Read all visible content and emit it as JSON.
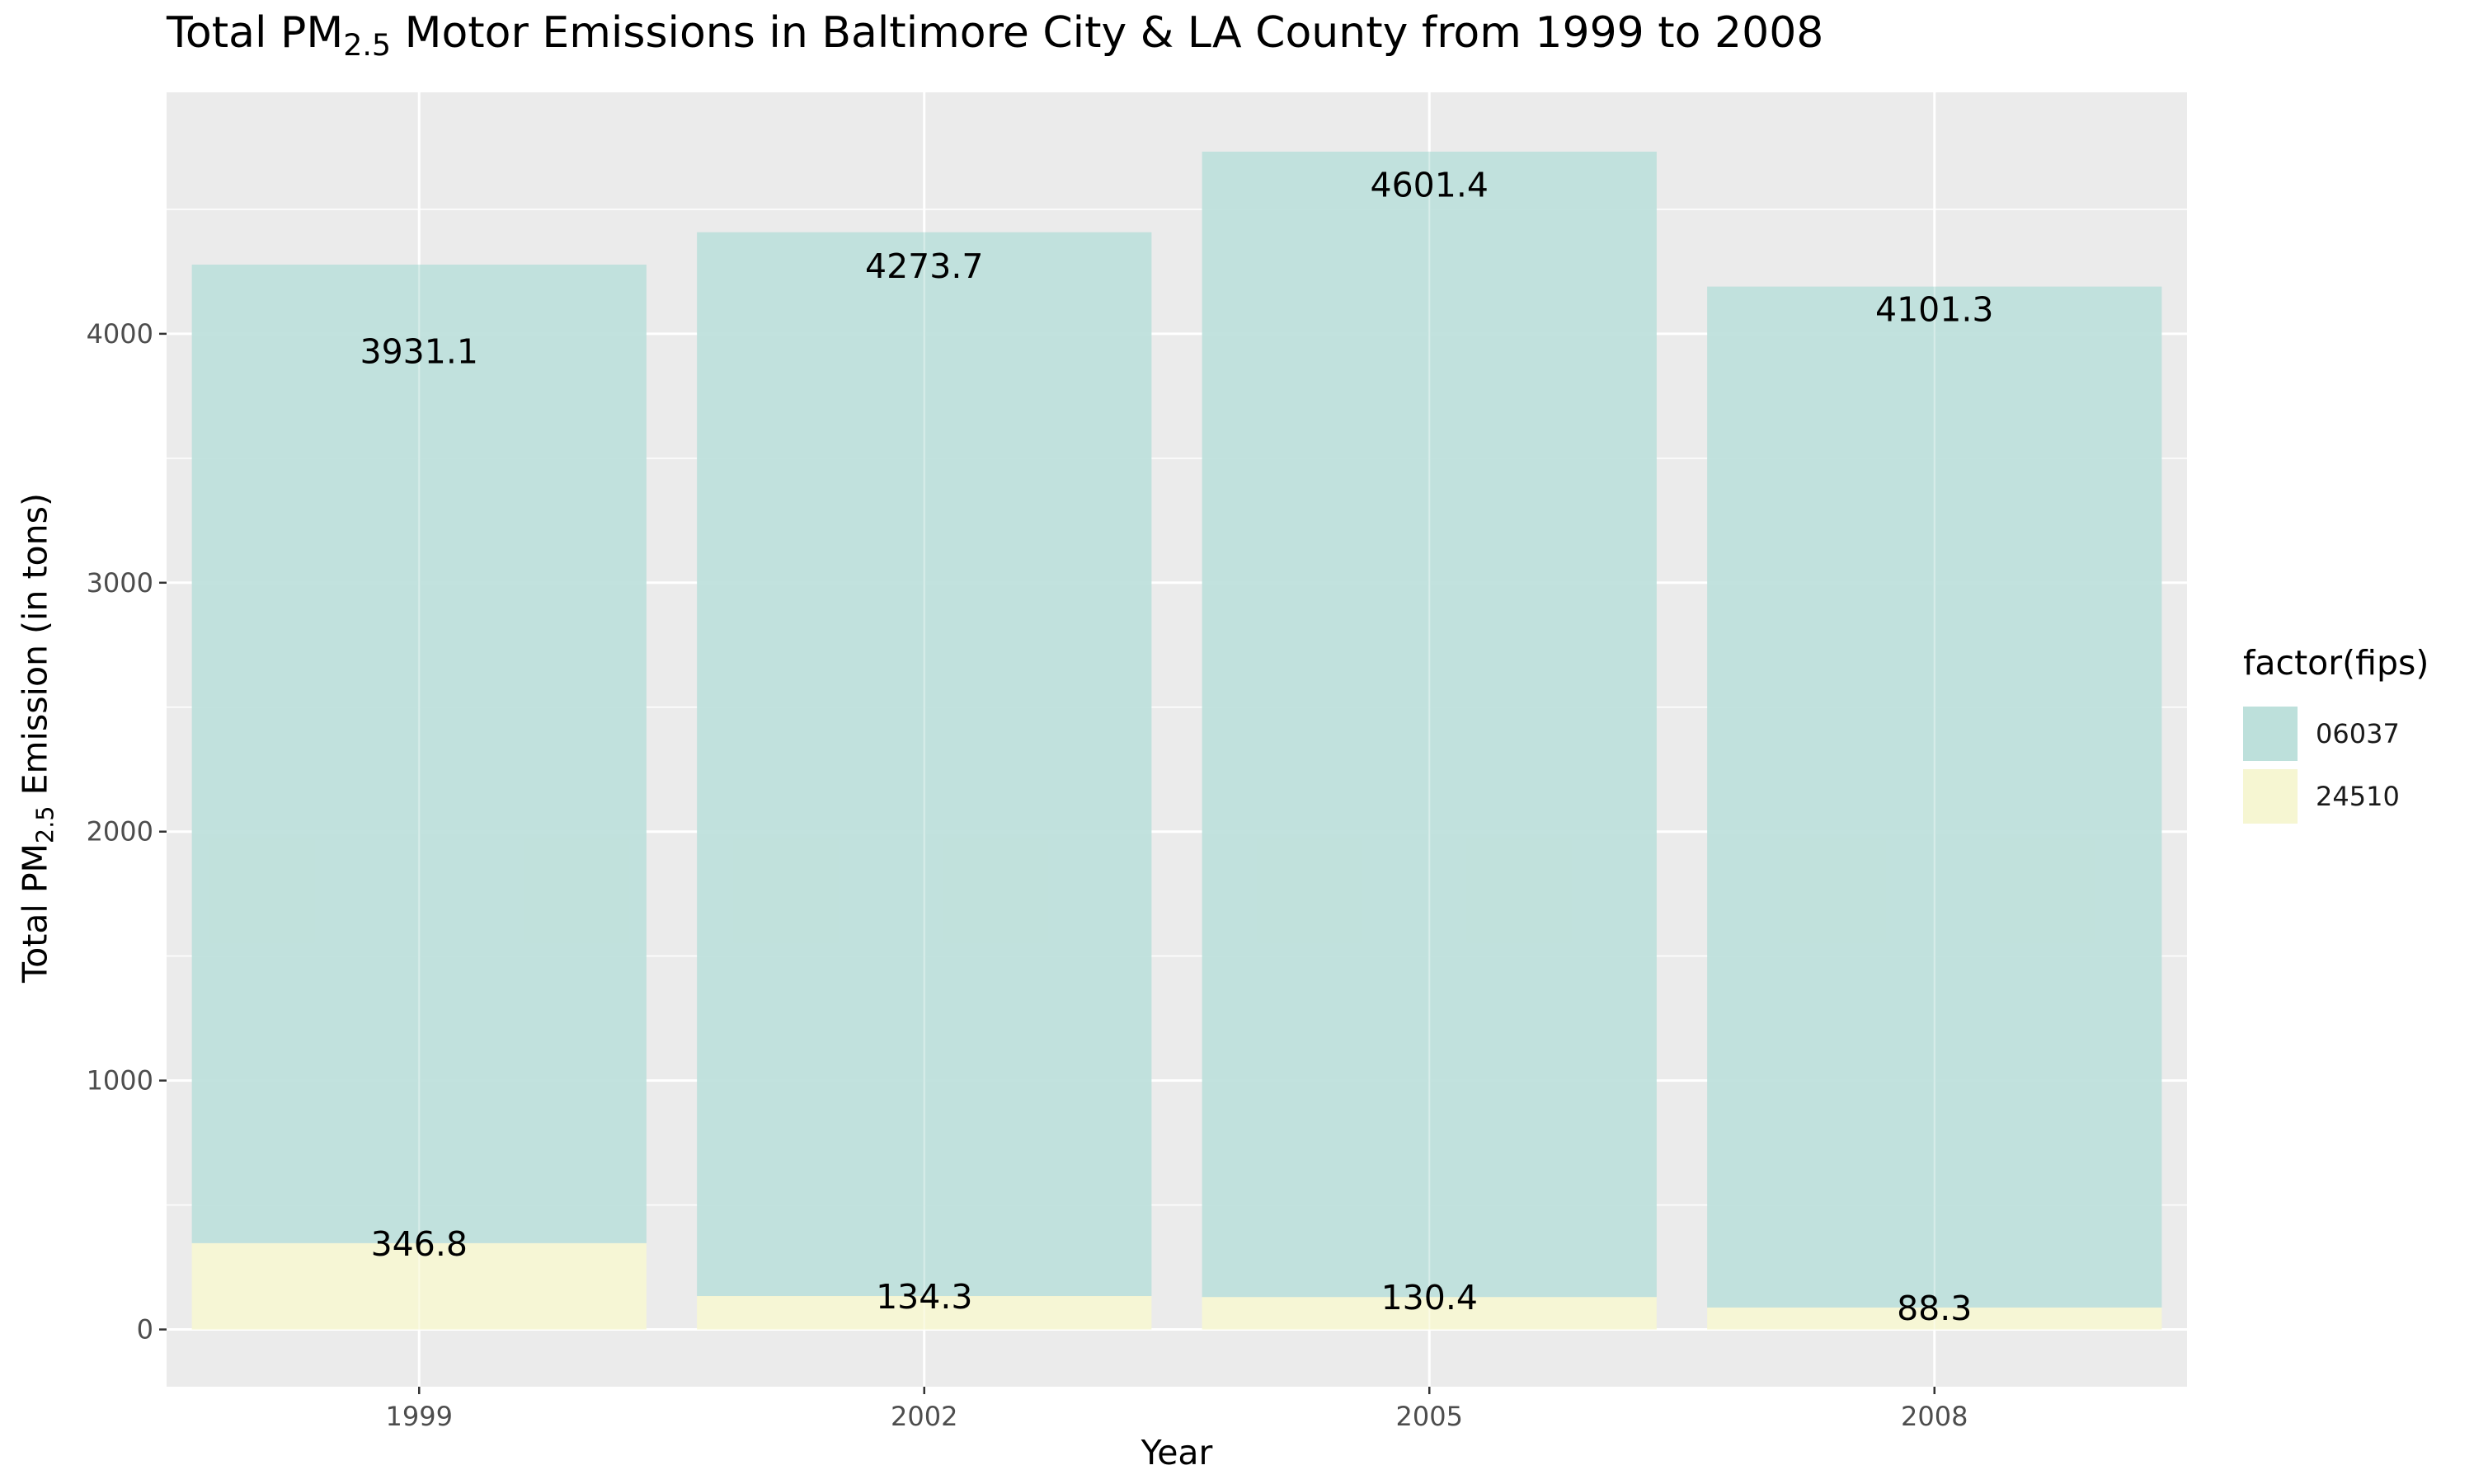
{
  "title": {
    "prefix": "Total PM",
    "subscript": "2.5",
    "suffix": " Motor Emissions in Baltimore City & LA County from 1999 to 2008"
  },
  "ylabel": {
    "prefix": "Total PM",
    "subscript": "2.5",
    "suffix": " Emission (in tons)"
  },
  "legend": {
    "title": "factor(fips)",
    "items": [
      {
        "label": "06037",
        "color": "#bde0db"
      },
      {
        "label": "24510",
        "color": "#f6f6d2"
      }
    ]
  },
  "colors": {
    "panel": "#ebebeb",
    "grid": "#ffffff",
    "axis_text": "#4d4d4d"
  },
  "chart_data": {
    "type": "bar",
    "stacked": true,
    "categories": [
      "1999",
      "2002",
      "2005",
      "2008"
    ],
    "series": [
      {
        "name": "24510",
        "values": [
          346.8,
          134.3,
          130.4,
          88.3
        ]
      },
      {
        "name": "06037",
        "values": [
          3931.1,
          4273.7,
          4601.4,
          4101.3
        ]
      }
    ],
    "data_labels": {
      "06037": [
        "3931.1",
        "4273.7",
        "4601.4",
        "4101.3"
      ],
      "24510": [
        "346.8",
        "134.3",
        "130.4",
        "88.3"
      ]
    },
    "xlabel": "Year",
    "ylim": [
      -230,
      4970
    ],
    "yticks": [
      0,
      1000,
      2000,
      3000,
      4000
    ],
    "grid": true,
    "legend_position": "right"
  }
}
